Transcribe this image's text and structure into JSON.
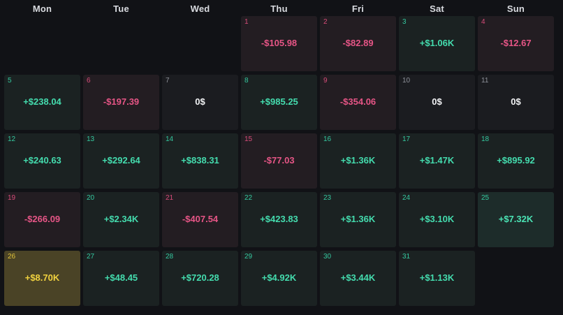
{
  "weekdays": [
    "Mon",
    "Tue",
    "Wed",
    "Thu",
    "Fri",
    "Sat",
    "Sun"
  ],
  "days": [
    {
      "day": "1",
      "pnl": "-$105.98",
      "status": "negative"
    },
    {
      "day": "2",
      "pnl": "-$82.89",
      "status": "negative"
    },
    {
      "day": "3",
      "pnl": "+$1.06K",
      "status": "positive"
    },
    {
      "day": "4",
      "pnl": "-$12.67",
      "status": "negative"
    },
    {
      "day": "5",
      "pnl": "+$238.04",
      "status": "positive"
    },
    {
      "day": "6",
      "pnl": "-$197.39",
      "status": "negative"
    },
    {
      "day": "7",
      "pnl": "0$",
      "status": "zero"
    },
    {
      "day": "8",
      "pnl": "+$985.25",
      "status": "positive"
    },
    {
      "day": "9",
      "pnl": "-$354.06",
      "status": "negative"
    },
    {
      "day": "10",
      "pnl": "0$",
      "status": "zero"
    },
    {
      "day": "11",
      "pnl": "0$",
      "status": "zero"
    },
    {
      "day": "12",
      "pnl": "+$240.63",
      "status": "positive"
    },
    {
      "day": "13",
      "pnl": "+$292.64",
      "status": "positive"
    },
    {
      "day": "14",
      "pnl": "+$838.31",
      "status": "positive"
    },
    {
      "day": "15",
      "pnl": "-$77.03",
      "status": "negative"
    },
    {
      "day": "16",
      "pnl": "+$1.36K",
      "status": "positive"
    },
    {
      "day": "17",
      "pnl": "+$1.47K",
      "status": "positive"
    },
    {
      "day": "18",
      "pnl": "+$895.92",
      "status": "positive"
    },
    {
      "day": "19",
      "pnl": "-$266.09",
      "status": "negative"
    },
    {
      "day": "20",
      "pnl": "+$2.34K",
      "status": "positive"
    },
    {
      "day": "21",
      "pnl": "-$407.54",
      "status": "negative"
    },
    {
      "day": "22",
      "pnl": "+$423.83",
      "status": "positive"
    },
    {
      "day": "23",
      "pnl": "+$1.36K",
      "status": "positive"
    },
    {
      "day": "24",
      "pnl": "+$3.10K",
      "status": "positive"
    },
    {
      "day": "25",
      "pnl": "+$7.32K",
      "status": "positive-strong"
    },
    {
      "day": "26",
      "pnl": "+$8.70K",
      "status": "best"
    },
    {
      "day": "27",
      "pnl": "+$48.45",
      "status": "positive"
    },
    {
      "day": "28",
      "pnl": "+$720.28",
      "status": "positive"
    },
    {
      "day": "29",
      "pnl": "+$4.92K",
      "status": "positive"
    },
    {
      "day": "30",
      "pnl": "+$3.44K",
      "status": "positive"
    },
    {
      "day": "31",
      "pnl": "+$1.13K",
      "status": "positive"
    }
  ],
  "colors": {
    "background": "#111216",
    "positive": "#44dcae",
    "negative": "#e65586",
    "zero": "#f2f3f5",
    "best": "#f1d23f"
  }
}
